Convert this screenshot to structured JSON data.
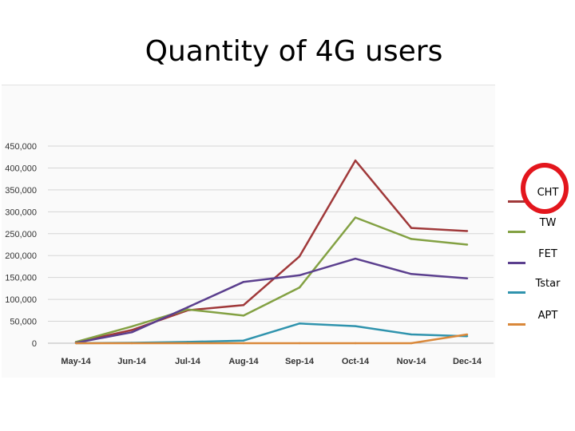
{
  "slide": {
    "title": "Quantity of 4G users"
  },
  "chart_data": {
    "type": "line",
    "categories": [
      "May-14",
      "Jun-14",
      "Jul-14",
      "Aug-14",
      "Sep-14",
      "Oct-14",
      "Nov-14",
      "Dec-14"
    ],
    "ylim": [
      0,
      450000
    ],
    "ytick_values": [
      0,
      50000,
      100000,
      150000,
      200000,
      250000,
      300000,
      350000,
      400000,
      450000
    ],
    "ytick_labels": [
      "0",
      "50,000",
      "100,000",
      "150,000",
      "200,000",
      "250,000",
      "300,000",
      "350,000",
      "400,000",
      "450,000"
    ],
    "grid": true,
    "legend_position": "right",
    "series": [
      {
        "name": "CHT",
        "color": "#a0393a",
        "values": [
          2000,
          30000,
          75000,
          87000,
          198000,
          417000,
          263000,
          256000
        ]
      },
      {
        "name": "TW",
        "color": "#83a143",
        "values": [
          3000,
          38000,
          77000,
          63000,
          127000,
          287000,
          238000,
          225000
        ]
      },
      {
        "name": "FET",
        "color": "#5b3f8e",
        "values": [
          1000,
          25000,
          82000,
          140000,
          155000,
          193000,
          158000,
          148000
        ]
      },
      {
        "name": "Tstar",
        "color": "#2f93ad",
        "values": [
          0,
          1000,
          3000,
          6000,
          45000,
          39000,
          20000,
          16000
        ]
      },
      {
        "name": "APT",
        "color": "#d9883a",
        "values": [
          0,
          0,
          0,
          0,
          0,
          0,
          0,
          20000
        ]
      }
    ]
  }
}
